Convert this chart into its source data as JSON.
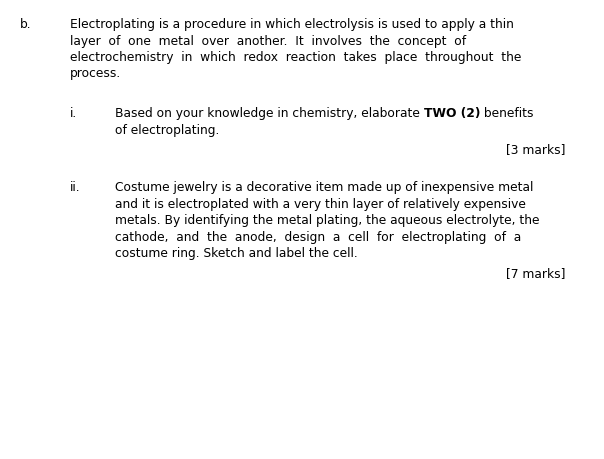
{
  "bg_color": "#ffffff",
  "text_color": "#000000",
  "fig_width": 6.04,
  "fig_height": 4.59,
  "dpi": 100,
  "b_label": "b.",
  "b_text_line1": "Electroplating is a procedure in which electrolysis is used to apply a thin",
  "b_text_line2": "layer  of  one  metal  over  another.  It  involves  the  concept  of",
  "b_text_line3": "electrochemistry  in  which  redox  reaction  takes  place  throughout  the",
  "b_text_line4": "process.",
  "i_label": "i.",
  "i_text_prefix": "Based on your knowledge in chemistry, elaborate ",
  "i_text_bold": "TWO (2)",
  "i_text_suffix": " benefits",
  "i_text_line2": "of electroplating.",
  "i_marks": "[3 marks]",
  "ii_label": "ii.",
  "ii_text_line1": "Costume jewelry is a decorative item made up of inexpensive metal",
  "ii_text_line2": "and it is electroplated with a very thin layer of relatively expensive",
  "ii_text_line3": "metals. By identifying the metal plating, the aqueous electrolyte, the",
  "ii_text_line4": "cathode,  and  the  anode,  design  a  cell  for  electroplating  of  a",
  "ii_text_line5": "costume ring. Sketch and label the cell.",
  "ii_marks": "[7 marks]",
  "font_size": 8.8,
  "font_family": "DejaVu Sans"
}
